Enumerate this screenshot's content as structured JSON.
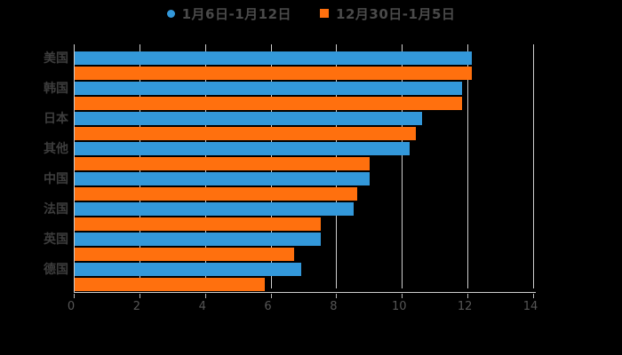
{
  "chart_data": {
    "type": "bar",
    "orientation": "horizontal",
    "title": "",
    "categories": [
      "美国",
      "韩国",
      "日本",
      "其他",
      "中国",
      "法国",
      "英国",
      "德国"
    ],
    "series": [
      {
        "name": "1月6日-1月12日",
        "color": "#3398da",
        "marker": "circle",
        "values": [
          12.1,
          11.8,
          10.6,
          10.2,
          9.0,
          8.5,
          7.5,
          6.9
        ]
      },
      {
        "name": "12月30日-1月5日",
        "color": "#ff700e",
        "marker": "square",
        "values": [
          12.1,
          11.8,
          10.4,
          9.0,
          8.6,
          7.5,
          6.7,
          5.8
        ]
      }
    ],
    "xlim": [
      0,
      14
    ],
    "x_ticks": [
      "0",
      "2",
      "4",
      "6",
      "8",
      "10",
      "12",
      "14"
    ],
    "grid": true,
    "legend_position": "top",
    "background": "#000000"
  },
  "colors": {
    "grid": "#cfcfcf",
    "axis": "#cfcfcf",
    "tick_mark": "#b8b8b8",
    "tick_label": "#565656",
    "category_label": "#3d3d3d",
    "legend_text": "#4a4a4a",
    "background": "#000000"
  }
}
